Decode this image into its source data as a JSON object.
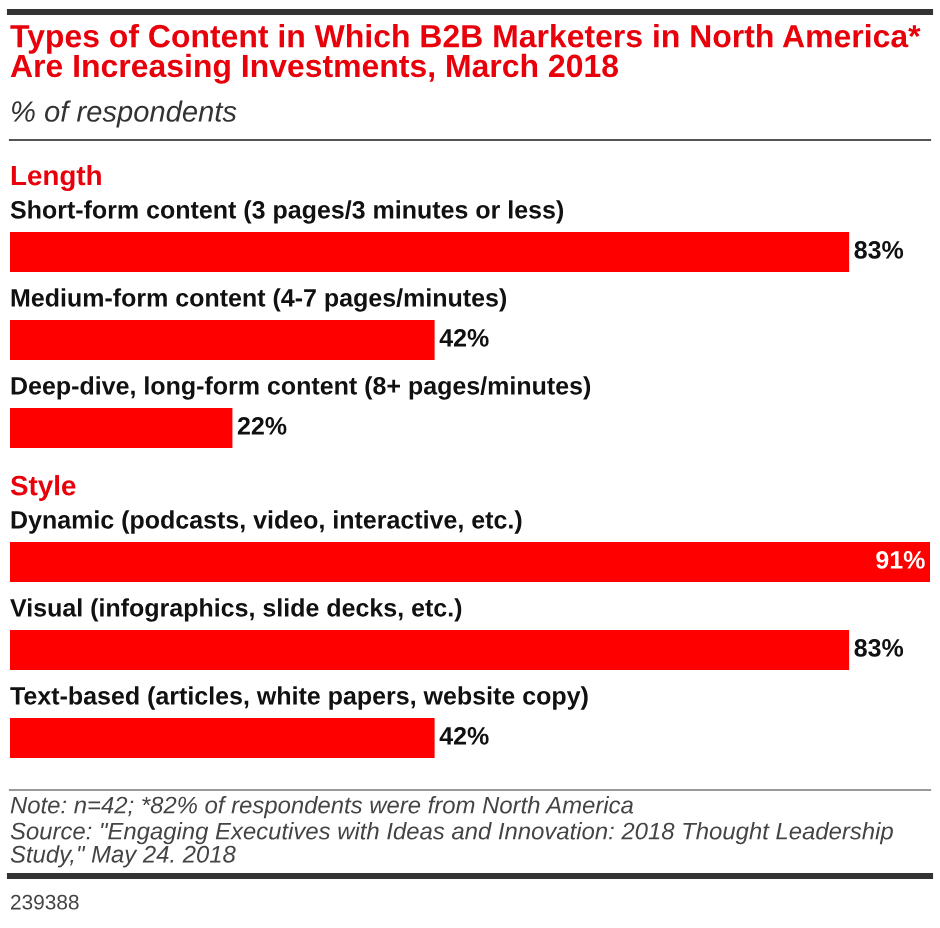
{
  "chart_data": {
    "type": "bar",
    "orientation": "horizontal",
    "title": "Types of Content in Which B2B Marketers in North America* Are Increasing Investments, March 2018",
    "subtitle": "% of respondents",
    "categories": [
      "Length",
      "Short-form content (3 pages/3 minutes or less)",
      "Medium-form content (4-7 pages/minutes)",
      "Deep-dive, long-form content (8+ pages/minutes)",
      "Style",
      "Dynamic (podcasts, video, interactive, etc.)",
      "Visual (infographics, slide decks, etc.)",
      "Text-based (articles, white papers, website copy)"
    ],
    "values": [
      null,
      83,
      42,
      22,
      null,
      91,
      83,
      42
    ],
    "value_labels": [
      null,
      "83%",
      "42%",
      "22%",
      null,
      "91%",
      "83%",
      "42%"
    ],
    "color": "#ff0000",
    "annotations": [
      "Note: n=42; *82% of respondents were from North America",
      "Source: \"Engaging Executives with Ideas and Innovation: 2018 Thought Leadership Study,\" May 24. 2018",
      "239388"
    ]
  }
}
